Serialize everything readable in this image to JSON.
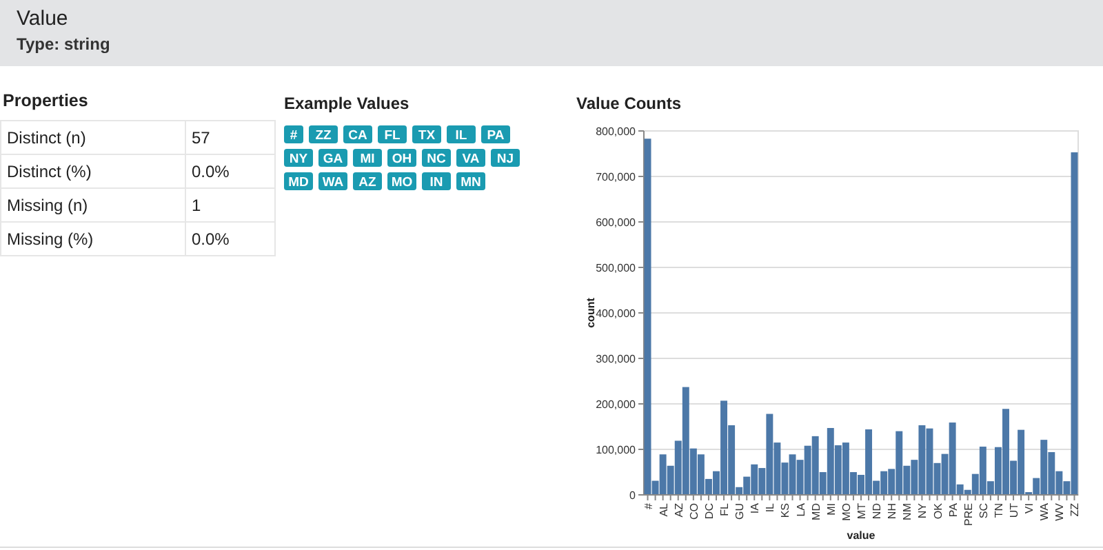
{
  "chart_data": {
    "type": "bar",
    "title": "Value",
    "subtitle": "Type: string",
    "xlabel": "value",
    "ylabel": "count",
    "categories": [
      "#",
      null,
      "AL",
      null,
      "AZ",
      null,
      "CO",
      null,
      "DC",
      null,
      "FL",
      null,
      "GU",
      null,
      "IA",
      null,
      "IL",
      null,
      "KS",
      null,
      "LA",
      null,
      "MD",
      null,
      "MI",
      null,
      "MO",
      null,
      "MT",
      null,
      "ND",
      null,
      "NH",
      null,
      "NM",
      null,
      "NY",
      null,
      "OK",
      null,
      "PA",
      null,
      "PRE",
      null,
      "SC",
      null,
      "TN",
      null,
      "UT",
      null,
      "VI",
      null,
      "WA",
      null,
      "WV",
      null,
      "ZZ"
    ],
    "values": [
      783000,
      31000,
      89000,
      64000,
      119000,
      237000,
      102000,
      89000,
      35000,
      52000,
      207000,
      153000,
      17000,
      40000,
      67000,
      59000,
      178000,
      115000,
      71000,
      89000,
      77000,
      108000,
      129000,
      50000,
      147000,
      109000,
      115000,
      50000,
      44000,
      144000,
      31000,
      52000,
      57000,
      140000,
      64000,
      77000,
      153000,
      146000,
      70000,
      90000,
      159000,
      23000,
      11000,
      46000,
      106000,
      30000,
      105000,
      189000,
      75000,
      143000,
      6000,
      37000,
      121000,
      94000,
      52000,
      30000,
      753000
    ],
    "color": "#4c78a8",
    "ylim": [
      0,
      800000
    ],
    "yticks": [
      {
        "value": 0,
        "label": "0"
      },
      {
        "value": 100000,
        "label": "100,000"
      },
      {
        "value": 200000,
        "label": "200,000"
      },
      {
        "value": 300000,
        "label": "300,000"
      },
      {
        "value": 400000,
        "label": "400,000"
      },
      {
        "value": 500000,
        "label": "500,000"
      },
      {
        "value": 600000,
        "label": "600,000"
      },
      {
        "value": 700000,
        "label": "700,000"
      },
      {
        "value": 800000,
        "label": "800,000"
      }
    ],
    "grid": "y",
    "annotations": [
      "Properties",
      "Distinct (n)",
      "57",
      "Distinct (%)",
      "0.0%",
      "Missing (n)",
      "1",
      "Missing (%)",
      "0.0%",
      "Example Values",
      "#",
      "ZZ",
      "CA",
      "FL",
      "TX",
      "IL",
      "PA",
      "NY",
      "GA",
      "MI",
      "OH",
      "NC",
      "VA",
      "NJ",
      "MD",
      "WA",
      "AZ",
      "MO",
      "IN",
      "MN",
      "Value Counts"
    ]
  }
}
